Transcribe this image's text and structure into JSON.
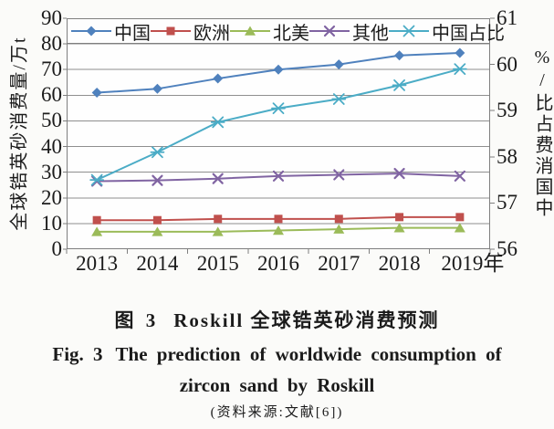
{
  "caption": {
    "zh_prefix": "图 3",
    "zh_title": "Roskill 全球锆英砂消费预测",
    "en_prefix": "Fig. 3",
    "en_line1": "The prediction of worldwide consumption of",
    "en_line2": "zircon sand by Roskill",
    "source": "(资料来源:文献[6])"
  },
  "chart_data": {
    "type": "line",
    "title": "Roskill 全球锆英砂消费预测",
    "grid": true,
    "legend_position": "top",
    "x_tick_labels": [
      "2013",
      "2014",
      "2015",
      "2016",
      "2017",
      "2018",
      "2019年"
    ],
    "left_axis": {
      "label": "全球锆英砂消费量/万t",
      "min": 0,
      "max": 90,
      "ticks": [
        90,
        80,
        70,
        60,
        50,
        40,
        30,
        20,
        10,
        0
      ]
    },
    "right_axis": {
      "label": "中国消费占比/%",
      "min": 56,
      "max": 61,
      "ticks": [
        61,
        60,
        59,
        58,
        57,
        56
      ]
    },
    "series": [
      {
        "name": "中国",
        "axis": "left",
        "marker": "diamond",
        "color": "#4f81bd",
        "values": [
          61,
          62.5,
          66.5,
          70,
          72,
          75.5,
          76.5
        ]
      },
      {
        "name": "欧洲",
        "axis": "left",
        "marker": "square",
        "color": "#c0504d",
        "values": [
          11.3,
          11.3,
          11.8,
          11.8,
          11.8,
          12.5,
          12.5
        ]
      },
      {
        "name": "北美",
        "axis": "left",
        "marker": "triangle",
        "color": "#9bbb59",
        "values": [
          6.8,
          6.8,
          6.8,
          7.3,
          7.8,
          8.3,
          8.3
        ]
      },
      {
        "name": "其他",
        "axis": "left",
        "marker": "x",
        "color": "#8064a2",
        "values": [
          26.5,
          26.8,
          27.5,
          28.5,
          29,
          29.5,
          28.5
        ]
      },
      {
        "name": "中国占比",
        "axis": "right",
        "marker": "star",
        "color": "#4bacc6",
        "values": [
          57.5,
          58.1,
          58.75,
          59.05,
          59.25,
          59.55,
          59.9
        ]
      }
    ],
    "colors": {
      "grid": "#8f8f8f",
      "border": "#7f7f7f",
      "plot_background": "#fefefe",
      "text": "#1b1b1b"
    }
  }
}
